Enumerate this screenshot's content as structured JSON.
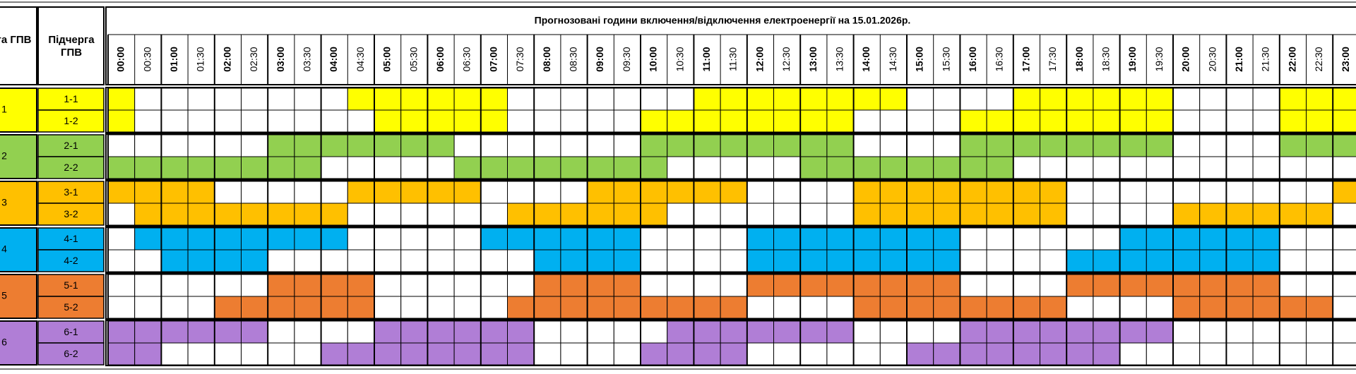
{
  "header": {
    "queue": "Черга ГПВ",
    "subqueue": "Підчерга ГПВ",
    "title": "Прогнозовані години включення/відключення електроенергії на 15.01.2026р."
  },
  "times": [
    "00:00",
    "00:30",
    "01:00",
    "01:30",
    "02:00",
    "02:30",
    "03:00",
    "03:30",
    "04:00",
    "04:30",
    "05:00",
    "05:30",
    "06:00",
    "06:30",
    "07:00",
    "07:30",
    "08:00",
    "08:30",
    "09:00",
    "09:30",
    "10:00",
    "10:30",
    "11:00",
    "11:30",
    "12:00",
    "12:30",
    "13:00",
    "13:30",
    "14:00",
    "14:30",
    "15:00",
    "15:30",
    "16:00",
    "16:30",
    "17:00",
    "17:30",
    "18:00",
    "18:30",
    "19:00",
    "19:30",
    "20:00",
    "20:30",
    "21:00",
    "21:30",
    "22:00",
    "22:30",
    "23:00"
  ],
  "queues": [
    {
      "label": "1",
      "color": "#ffff00",
      "subqueues": [
        {
          "label": "1-1",
          "cells": [
            1,
            0,
            0,
            0,
            0,
            0,
            0,
            0,
            0,
            1,
            1,
            1,
            1,
            1,
            1,
            0,
            0,
            0,
            0,
            0,
            0,
            0,
            1,
            1,
            1,
            1,
            1,
            1,
            1,
            1,
            0,
            0,
            0,
            0,
            1,
            1,
            1,
            1,
            1,
            1,
            0,
            0,
            0,
            0,
            1,
            1,
            1
          ]
        },
        {
          "label": "1-2",
          "cells": [
            1,
            0,
            0,
            0,
            0,
            0,
            0,
            0,
            0,
            0,
            1,
            1,
            1,
            1,
            1,
            0,
            0,
            0,
            0,
            0,
            1,
            1,
            1,
            1,
            1,
            1,
            1,
            1,
            0,
            0,
            0,
            0,
            1,
            1,
            1,
            1,
            1,
            1,
            1,
            1,
            0,
            0,
            0,
            0,
            1,
            1,
            1
          ]
        }
      ]
    },
    {
      "label": "2",
      "color": "#92d050",
      "subqueues": [
        {
          "label": "2-1",
          "cells": [
            0,
            0,
            0,
            0,
            0,
            0,
            1,
            1,
            1,
            1,
            1,
            1,
            1,
            0,
            0,
            0,
            0,
            0,
            0,
            0,
            1,
            1,
            1,
            1,
            1,
            1,
            1,
            1,
            0,
            0,
            0,
            0,
            1,
            1,
            1,
            1,
            1,
            1,
            1,
            1,
            0,
            0,
            0,
            0,
            1,
            1,
            1
          ]
        },
        {
          "label": "2-2",
          "cells": [
            1,
            1,
            1,
            1,
            1,
            1,
            1,
            1,
            0,
            0,
            0,
            0,
            0,
            1,
            1,
            1,
            1,
            1,
            1,
            1,
            1,
            0,
            0,
            0,
            0,
            0,
            1,
            1,
            1,
            1,
            1,
            1,
            1,
            1,
            0,
            0,
            0,
            0,
            0,
            0,
            0,
            0,
            0,
            0,
            0,
            0,
            0
          ]
        }
      ]
    },
    {
      "label": "3",
      "color": "#ffc000",
      "subqueues": [
        {
          "label": "3-1",
          "cells": [
            1,
            1,
            1,
            1,
            0,
            0,
            0,
            0,
            0,
            1,
            1,
            1,
            1,
            1,
            0,
            0,
            0,
            0,
            1,
            1,
            1,
            1,
            1,
            1,
            0,
            0,
            0,
            0,
            1,
            1,
            1,
            1,
            1,
            1,
            1,
            1,
            0,
            0,
            0,
            0,
            0,
            0,
            0,
            0,
            0,
            0,
            1
          ]
        },
        {
          "label": "3-2",
          "cells": [
            0,
            1,
            1,
            1,
            1,
            1,
            1,
            1,
            1,
            0,
            0,
            0,
            0,
            0,
            0,
            1,
            1,
            1,
            1,
            1,
            1,
            0,
            0,
            0,
            0,
            0,
            0,
            0,
            1,
            1,
            1,
            1,
            1,
            1,
            1,
            1,
            0,
            0,
            0,
            0,
            1,
            1,
            1,
            1,
            1,
            1,
            0
          ]
        }
      ]
    },
    {
      "label": "4",
      "color": "#00b0f0",
      "subqueues": [
        {
          "label": "4-1",
          "cells": [
            0,
            1,
            1,
            1,
            1,
            1,
            1,
            1,
            1,
            0,
            0,
            0,
            0,
            0,
            1,
            1,
            1,
            1,
            1,
            1,
            0,
            0,
            0,
            0,
            1,
            1,
            1,
            1,
            1,
            1,
            1,
            1,
            0,
            0,
            0,
            0,
            0,
            0,
            1,
            1,
            1,
            1,
            1,
            1,
            0,
            0,
            0
          ]
        },
        {
          "label": "4-2",
          "cells": [
            0,
            0,
            1,
            1,
            1,
            1,
            0,
            0,
            0,
            0,
            0,
            0,
            0,
            0,
            0,
            0,
            1,
            1,
            1,
            1,
            0,
            0,
            0,
            0,
            1,
            1,
            1,
            1,
            1,
            1,
            1,
            1,
            0,
            0,
            0,
            0,
            1,
            1,
            1,
            1,
            1,
            1,
            1,
            1,
            0,
            0,
            0
          ]
        }
      ]
    },
    {
      "label": "5",
      "color": "#ed7d31",
      "subqueues": [
        {
          "label": "5-1",
          "cells": [
            0,
            0,
            0,
            0,
            0,
            0,
            1,
            1,
            1,
            1,
            0,
            0,
            0,
            0,
            0,
            0,
            1,
            1,
            1,
            1,
            0,
            0,
            0,
            0,
            1,
            1,
            1,
            1,
            1,
            1,
            1,
            1,
            0,
            0,
            0,
            0,
            1,
            1,
            1,
            1,
            1,
            1,
            1,
            1,
            0,
            0,
            0
          ]
        },
        {
          "label": "5-2",
          "cells": [
            0,
            0,
            0,
            0,
            1,
            1,
            1,
            1,
            1,
            1,
            0,
            0,
            0,
            0,
            0,
            1,
            1,
            1,
            1,
            1,
            1,
            1,
            1,
            1,
            0,
            0,
            0,
            0,
            1,
            1,
            1,
            1,
            1,
            1,
            1,
            1,
            0,
            0,
            0,
            0,
            1,
            1,
            1,
            1,
            1,
            1,
            0
          ]
        }
      ]
    },
    {
      "label": "6",
      "color": "#b07ed6",
      "subqueues": [
        {
          "label": "6-1",
          "cells": [
            1,
            1,
            1,
            1,
            1,
            1,
            0,
            0,
            0,
            0,
            1,
            1,
            1,
            1,
            1,
            1,
            0,
            0,
            0,
            0,
            0,
            1,
            1,
            1,
            1,
            1,
            1,
            1,
            0,
            0,
            0,
            0,
            1,
            1,
            1,
            1,
            1,
            1,
            1,
            1,
            0,
            0,
            0,
            0,
            0,
            0,
            0
          ]
        },
        {
          "label": "6-2",
          "cells": [
            1,
            1,
            0,
            0,
            0,
            0,
            0,
            0,
            1,
            1,
            1,
            1,
            1,
            1,
            1,
            1,
            0,
            0,
            0,
            0,
            1,
            1,
            1,
            1,
            0,
            0,
            0,
            0,
            0,
            0,
            1,
            1,
            1,
            1,
            1,
            1,
            1,
            1,
            0,
            0,
            0,
            0,
            0,
            0,
            0,
            0,
            0
          ]
        }
      ]
    }
  ]
}
